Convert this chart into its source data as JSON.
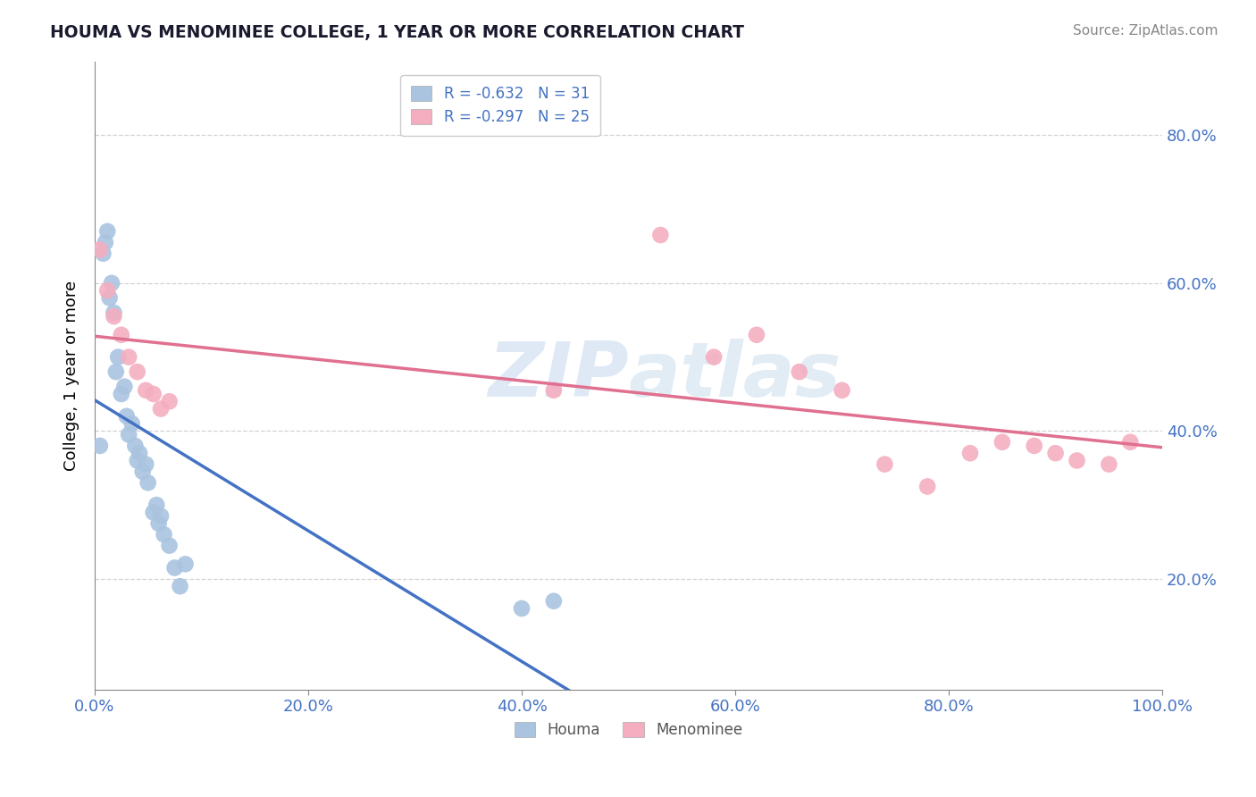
{
  "title": "HOUMA VS MENOMINEE COLLEGE, 1 YEAR OR MORE CORRELATION CHART",
  "source_text": "Source: ZipAtlas.com",
  "ylabel": "College, 1 year or more",
  "xlim": [
    0.0,
    1.0
  ],
  "ylim": [
    0.05,
    0.9
  ],
  "x_tick_labels": [
    "0.0%",
    "20.0%",
    "40.0%",
    "60.0%",
    "80.0%",
    "100.0%"
  ],
  "x_tick_vals": [
    0.0,
    0.2,
    0.4,
    0.6,
    0.8,
    1.0
  ],
  "y_tick_labels": [
    "20.0%",
    "40.0%",
    "60.0%",
    "80.0%"
  ],
  "y_tick_vals": [
    0.2,
    0.4,
    0.6,
    0.8
  ],
  "legend_r_houma": "R = -0.632",
  "legend_n_houma": "N = 31",
  "legend_r_menominee": "R = -0.297",
  "legend_n_menominee": "N = 25",
  "houma_color": "#aac4e0",
  "menominee_color": "#f4aec0",
  "houma_line_color": "#4472c4",
  "menominee_line_color": "#e07090",
  "background_color": "#ffffff",
  "grid_color": "#c8c8c8",
  "watermark_color": "#d0dff0",
  "watermark_text": "ZIPatlas",
  "houma_x": [
    0.005,
    0.008,
    0.01,
    0.012,
    0.014,
    0.016,
    0.018,
    0.02,
    0.022,
    0.025,
    0.028,
    0.03,
    0.032,
    0.035,
    0.038,
    0.04,
    0.042,
    0.045,
    0.048,
    0.05,
    0.055,
    0.058,
    0.06,
    0.062,
    0.065,
    0.07,
    0.075,
    0.08,
    0.085,
    0.4,
    0.43
  ],
  "houma_y": [
    0.38,
    0.64,
    0.655,
    0.67,
    0.58,
    0.6,
    0.56,
    0.48,
    0.5,
    0.45,
    0.46,
    0.42,
    0.395,
    0.41,
    0.38,
    0.36,
    0.37,
    0.345,
    0.355,
    0.33,
    0.29,
    0.3,
    0.275,
    0.285,
    0.26,
    0.245,
    0.215,
    0.19,
    0.22,
    0.16,
    0.17
  ],
  "menominee_x": [
    0.005,
    0.012,
    0.018,
    0.025,
    0.032,
    0.04,
    0.048,
    0.055,
    0.062,
    0.07,
    0.43,
    0.53,
    0.58,
    0.62,
    0.66,
    0.7,
    0.74,
    0.78,
    0.82,
    0.85,
    0.88,
    0.9,
    0.92,
    0.95,
    0.97
  ],
  "menominee_y": [
    0.645,
    0.59,
    0.555,
    0.53,
    0.5,
    0.48,
    0.455,
    0.45,
    0.43,
    0.44,
    0.455,
    0.665,
    0.5,
    0.53,
    0.48,
    0.455,
    0.355,
    0.325,
    0.37,
    0.385,
    0.38,
    0.37,
    0.36,
    0.355,
    0.385
  ]
}
